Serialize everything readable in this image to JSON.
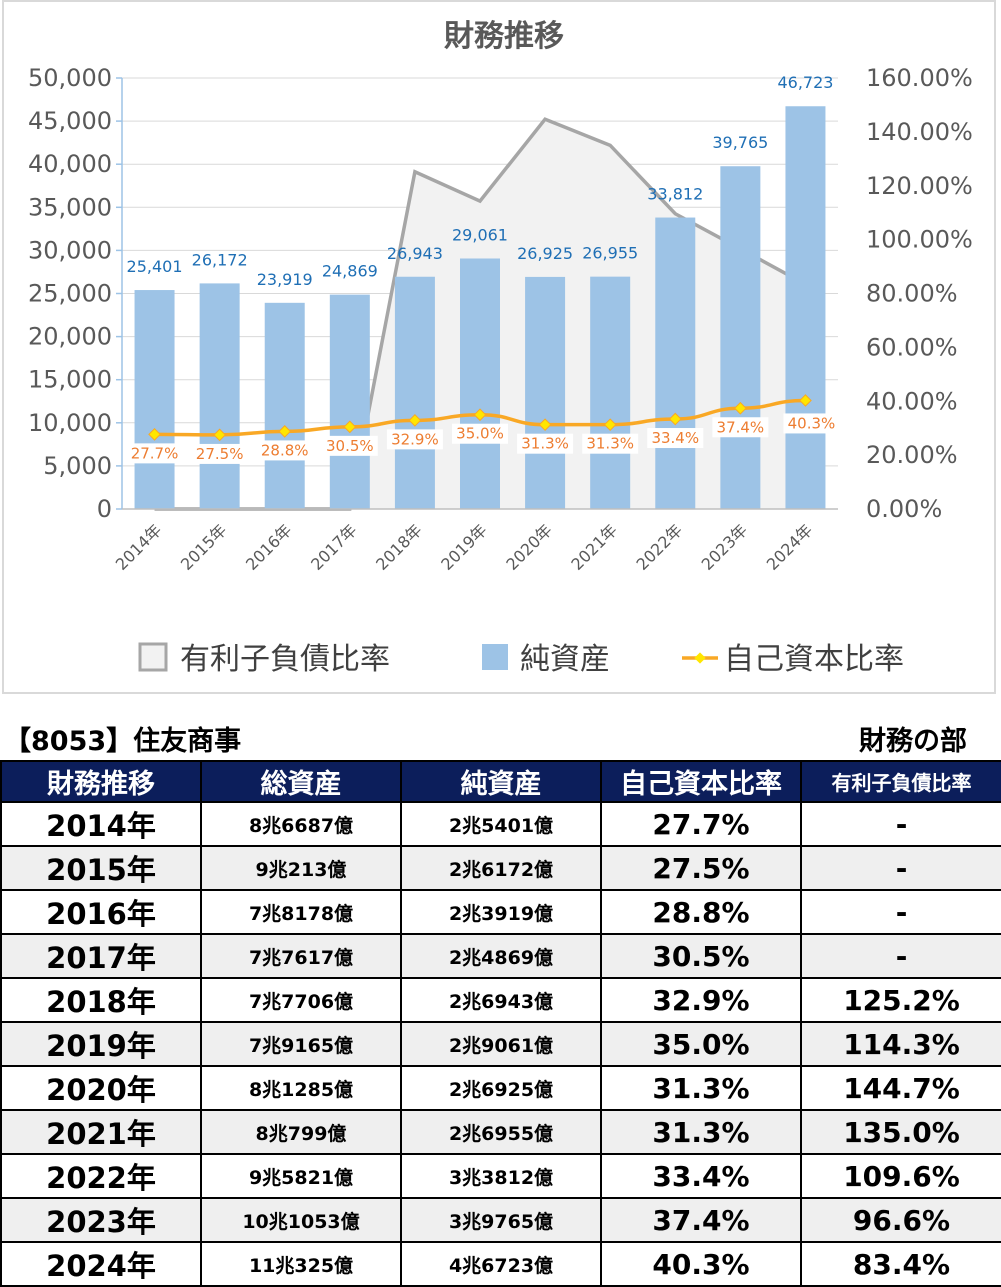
{
  "chart_data": {
    "type": "bar",
    "title": "財務推移",
    "categories": [
      "2014年",
      "2015年",
      "2016年",
      "2017年",
      "2018年",
      "2019年",
      "2020年",
      "2021年",
      "2022年",
      "2023年",
      "2024年"
    ],
    "series": [
      {
        "name": "有利子負債比率",
        "type": "area",
        "axis": "right",
        "color": "#a6a6a6",
        "fill": "#f2f2f2",
        "values": [
          0,
          0,
          0,
          0,
          125.2,
          114.3,
          144.7,
          135.0,
          109.6,
          96.6,
          83.4
        ]
      },
      {
        "name": "純資産",
        "type": "bar",
        "axis": "left",
        "color": "#9dc3e6",
        "values": [
          25401,
          26172,
          23919,
          24869,
          26943,
          29061,
          26925,
          26955,
          33812,
          39765,
          46723
        ],
        "labels": [
          "25,401",
          "26,172",
          "23,919",
          "24,869",
          "26,943",
          "29,061",
          "26,925",
          "26,955",
          "33,812",
          "39,765",
          "46,723"
        ]
      },
      {
        "name": "自己資本比率",
        "type": "line",
        "axis": "right",
        "color": "#f9a825",
        "values": [
          27.7,
          27.5,
          28.8,
          30.5,
          32.9,
          35.0,
          31.3,
          31.3,
          33.4,
          37.4,
          40.3
        ],
        "labels": [
          "27.7%",
          "27.5%",
          "28.8%",
          "30.5%",
          "32.9%",
          "35.0%",
          "31.3%",
          "31.3%",
          "33.4%",
          "37.4%",
          "40.3%"
        ]
      }
    ],
    "left_axis": {
      "min": 0,
      "max": 50000,
      "step": 5000,
      "ticks": [
        "0",
        "5,000",
        "10,000",
        "15,000",
        "20,000",
        "25,000",
        "30,000",
        "35,000",
        "40,000",
        "45,000",
        "50,000"
      ]
    },
    "right_axis": {
      "min": 0,
      "max": 160,
      "step": 20,
      "ticks": [
        "0.00%",
        "20.00%",
        "40.00%",
        "60.00%",
        "80.00%",
        "100.00%",
        "120.00%",
        "140.00%",
        "160.00%"
      ]
    },
    "legend_position": "bottom",
    "grid": true
  },
  "table": {
    "title_left": "【8053】住友商事",
    "title_right": "財務の部",
    "headers": [
      "財務推移",
      "総資産",
      "純資産",
      "自己資本比率",
      "有利子負債比率"
    ],
    "rows": [
      [
        "2014年",
        "8兆6687億",
        "2兆5401億",
        "27.7%",
        "-"
      ],
      [
        "2015年",
        "9兆213億",
        "2兆6172億",
        "27.5%",
        "-"
      ],
      [
        "2016年",
        "7兆8178億",
        "2兆3919億",
        "28.8%",
        "-"
      ],
      [
        "2017年",
        "7兆7617億",
        "2兆4869億",
        "30.5%",
        "-"
      ],
      [
        "2018年",
        "7兆7706億",
        "2兆6943億",
        "32.9%",
        "125.2%"
      ],
      [
        "2019年",
        "7兆9165億",
        "2兆9061億",
        "35.0%",
        "114.3%"
      ],
      [
        "2020年",
        "8兆1285億",
        "2兆6925億",
        "31.3%",
        "144.7%"
      ],
      [
        "2021年",
        "8兆799億",
        "2兆6955億",
        "31.3%",
        "135.0%"
      ],
      [
        "2022年",
        "9兆5821億",
        "3兆3812億",
        "33.4%",
        "109.6%"
      ],
      [
        "2023年",
        "10兆1053億",
        "3兆9765億",
        "37.4%",
        "96.6%"
      ],
      [
        "2024年",
        "11兆325億",
        "4兆6723億",
        "40.3%",
        "83.4%"
      ]
    ]
  }
}
